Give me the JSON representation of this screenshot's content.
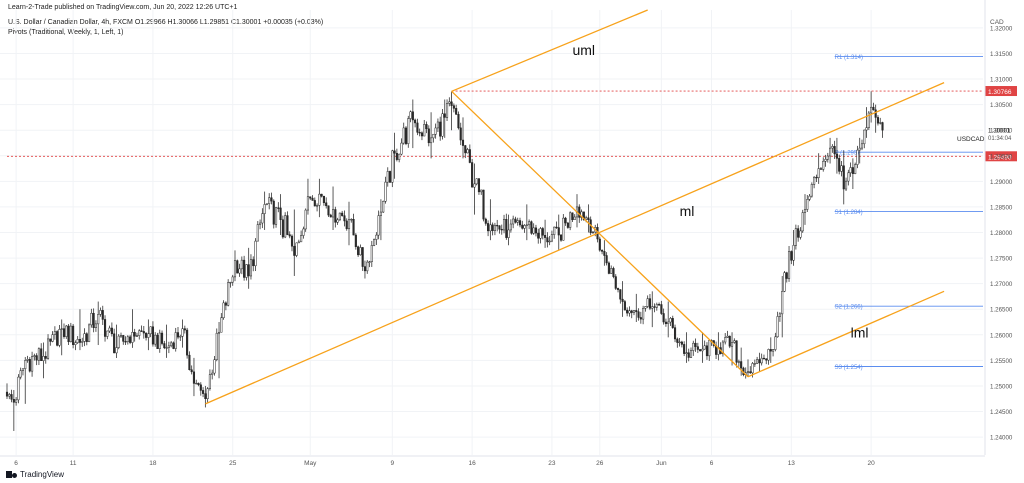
{
  "header": {
    "publish_line": "Learn-2-Trade published on TradingView.com, Jun 20, 2022 12:26 UTC+1",
    "symbol_prefix": "U.S. Dollar / Canadian Dollar, 4h, FXCM",
    "ohlc": "O1.29966 H1.30066 L1.29851 C1.30001 +0.00035 (+0.03%)",
    "pivots_line": "Pivots (Traditional, Weekly, 1, Left, 1)"
  },
  "footer": {
    "logo_text": "TradingView"
  },
  "colors": {
    "up": "#2b2b2b",
    "down": "#2b2b2b",
    "trendline": "#f7a21b",
    "pivot": "#5b8def",
    "resistance": "#e04444",
    "grid": "#f1f3f6",
    "axis_text": "#555555"
  },
  "chart_data": {
    "type": "candlestick",
    "currency_label": "CAD",
    "symbol_label": "USDCAD",
    "price_label": "1.30001",
    "countdown": "01:34:04",
    "ylim": [
      1.2365,
      1.3235
    ],
    "y_ticks": [
      1.24,
      1.245,
      1.25,
      1.255,
      1.26,
      1.265,
      1.27,
      1.275,
      1.28,
      1.285,
      1.29,
      1.295,
      1.3,
      1.305,
      1.31,
      1.315,
      1.32
    ],
    "y_tick_labels": [
      "1.24000",
      "1.24500",
      "1.25000",
      "1.25500",
      "1.26000",
      "1.26500",
      "1.27000",
      "1.27500",
      "1.28000",
      "1.28500",
      "1.29000",
      "1.29500",
      "1.30000",
      "1.30500",
      "1.31000",
      "1.31500",
      "1.32000"
    ],
    "x_ticks": [
      {
        "label": "6",
        "bar": 4
      },
      {
        "label": "11",
        "bar": 29
      },
      {
        "label": "18",
        "bar": 64
      },
      {
        "label": "25",
        "bar": 99
      },
      {
        "label": "May",
        "bar": 133
      },
      {
        "label": "9",
        "bar": 169
      },
      {
        "label": "16",
        "bar": 204
      },
      {
        "label": "23",
        "bar": 239
      },
      {
        "label": "26",
        "bar": 260
      },
      {
        "label": "Jun",
        "bar": 287
      },
      {
        "label": "6",
        "bar": 309
      },
      {
        "label": "13",
        "bar": 344
      },
      {
        "label": "20",
        "bar": 379
      }
    ],
    "levels": [
      {
        "name": "pivot",
        "label": "P (1.295)",
        "value": 1.2957,
        "color": "#5b8def",
        "from_bar": 363
      },
      {
        "name": "r1",
        "label": "R1 (1.314)",
        "value": 1.3144,
        "color": "#5b8def",
        "from_bar": 363
      },
      {
        "name": "s1",
        "label": "S1 (1.284)",
        "value": 1.2841,
        "color": "#5b8def",
        "from_bar": 363
      },
      {
        "name": "s2",
        "label": "S2 (1.266)",
        "value": 1.2656,
        "color": "#5b8def",
        "from_bar": 363
      },
      {
        "name": "s3",
        "label": "S3 (1.254)",
        "value": 1.2538,
        "color": "#5b8def",
        "from_bar": 363
      }
    ],
    "resistance_lines": [
      {
        "value": 1.30766,
        "label": "1.30766",
        "from_bar": 195
      },
      {
        "value": 1.2949,
        "label": "1.29490",
        "from_bar": 0
      }
    ],
    "trendlines": [
      {
        "name": "uml",
        "label": "uml",
        "points": [
          [
            195,
            1.3076
          ],
          [
            281,
            1.3235
          ]
        ],
        "label_at": [
          248,
          1.3147
        ]
      },
      {
        "name": "ml",
        "label": "ml",
        "points": [
          [
            87,
            1.2465
          ],
          [
            411,
            1.3093
          ]
        ],
        "label_at": [
          295,
          1.2832
        ]
      },
      {
        "name": "lml",
        "label": "lml",
        "points": [
          [
            325,
            1.2518
          ],
          [
            411,
            1.2685
          ]
        ],
        "label_at": [
          370,
          1.2595
        ]
      },
      {
        "name": "handle",
        "label": "",
        "points": [
          [
            195,
            1.3076
          ],
          [
            325,
            1.2518
          ]
        ]
      }
    ],
    "anchors": [
      [
        0,
        1.248,
        1.2505,
        1.2482
      ],
      [
        3,
        1.2468,
        1.2492,
        1.2412
      ],
      [
        8,
        1.255,
        1.2555,
        1.2465
      ],
      [
        16,
        1.2558,
        1.2585,
        1.2515
      ],
      [
        24,
        1.2612,
        1.263,
        1.256
      ],
      [
        32,
        1.2585,
        1.265,
        1.257
      ],
      [
        40,
        1.264,
        1.2665,
        1.258
      ],
      [
        48,
        1.2575,
        1.262,
        1.2555
      ],
      [
        55,
        1.2605,
        1.265,
        1.259
      ],
      [
        62,
        1.2602,
        1.263,
        1.257
      ],
      [
        70,
        1.2575,
        1.262,
        1.2555
      ],
      [
        77,
        1.2612,
        1.263,
        1.2575
      ],
      [
        82,
        1.2505,
        1.2555,
        1.248
      ],
      [
        87,
        1.2475,
        1.25,
        1.2458
      ],
      [
        93,
        1.2605,
        1.2625,
        1.2515
      ],
      [
        100,
        1.2745,
        1.2765,
        1.2705
      ],
      [
        106,
        1.2715,
        1.277,
        1.269
      ],
      [
        113,
        1.2855,
        1.288,
        1.2805
      ],
      [
        120,
        1.2825,
        1.2875,
        1.2795
      ],
      [
        126,
        1.2755,
        1.2845,
        1.2715
      ],
      [
        132,
        1.287,
        1.2905,
        1.2835
      ],
      [
        137,
        1.2875,
        1.2905,
        1.283
      ],
      [
        143,
        1.2845,
        1.289,
        1.2805
      ],
      [
        150,
        1.2825,
        1.286,
        1.2775
      ],
      [
        157,
        1.2725,
        1.2745,
        1.271
      ],
      [
        164,
        1.284,
        1.2865,
        1.2785
      ],
      [
        170,
        1.2955,
        1.2995,
        1.2905
      ],
      [
        178,
        1.302,
        1.306,
        1.2965
      ],
      [
        186,
        1.2985,
        1.3035,
        1.2945
      ],
      [
        192,
        1.3025,
        1.306,
        1.2985
      ],
      [
        195,
        1.3048,
        1.3076,
        1.3
      ],
      [
        200,
        1.297,
        1.3025,
        1.2945
      ],
      [
        205,
        1.2895,
        1.2935,
        1.2835
      ],
      [
        212,
        1.2815,
        1.2865,
        1.2785
      ],
      [
        220,
        1.2805,
        1.2835,
        1.2775
      ],
      [
        228,
        1.2815,
        1.2855,
        1.2785
      ],
      [
        236,
        1.279,
        1.2825,
        1.277
      ],
      [
        242,
        1.2795,
        1.2835,
        1.2765
      ],
      [
        250,
        1.285,
        1.2875,
        1.281
      ],
      [
        255,
        1.2825,
        1.2855,
        1.28
      ],
      [
        262,
        1.2755,
        1.2785,
        1.2735
      ],
      [
        270,
        1.2665,
        1.2705,
        1.2635
      ],
      [
        276,
        1.2645,
        1.268,
        1.2625
      ],
      [
        283,
        1.2655,
        1.2685,
        1.2615
      ],
      [
        290,
        1.2625,
        1.2665,
        1.2595
      ],
      [
        298,
        1.2565,
        1.2605,
        1.2545
      ],
      [
        305,
        1.2572,
        1.2605,
        1.2545
      ],
      [
        312,
        1.2575,
        1.2605,
        1.255
      ],
      [
        318,
        1.2585,
        1.2605,
        1.254
      ],
      [
        322,
        1.2535,
        1.2575,
        1.252
      ],
      [
        325,
        1.2528,
        1.2552,
        1.2518
      ],
      [
        330,
        1.2545,
        1.2565,
        1.2528
      ],
      [
        335,
        1.2568,
        1.2595,
        1.2545
      ],
      [
        340,
        1.2685,
        1.2715,
        1.2595
      ],
      [
        345,
        1.2775,
        1.2805,
        1.2735
      ],
      [
        350,
        1.2845,
        1.2875,
        1.2815
      ],
      [
        356,
        1.2925,
        1.2955,
        1.2895
      ],
      [
        361,
        1.2965,
        1.2985,
        1.2935
      ],
      [
        364,
        1.2945,
        1.2985,
        1.2915
      ],
      [
        367,
        1.2885,
        1.296,
        1.2855
      ],
      [
        371,
        1.2915,
        1.2945,
        1.2885
      ],
      [
        374,
        1.2965,
        1.2985,
        1.2935
      ],
      [
        377,
        1.3005,
        1.3045,
        1.2985
      ],
      [
        379,
        1.3045,
        1.3076,
        1.3015
      ],
      [
        381,
        1.3025,
        1.305,
        1.2995
      ],
      [
        384,
        1.30001,
        1.30066,
        1.29851
      ]
    ]
  }
}
